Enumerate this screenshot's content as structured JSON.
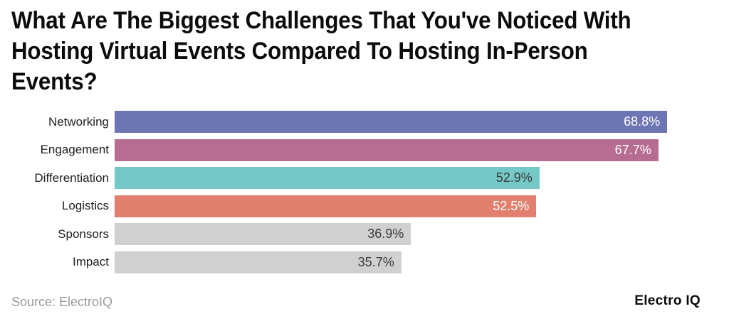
{
  "header": {
    "title": "What Are The Biggest Challenges That You've Noticed With Hosting Virtual Events Compared To Hosting In-Person Events?",
    "title_lines": [
      "What Are The Biggest Challenges That You've Noticed With",
      "Hosting Virtual Events Compared To Hosting In-Person",
      "Events?"
    ]
  },
  "chart_data": {
    "type": "bar",
    "orientation": "horizontal",
    "title": "What Are The Biggest Challenges That You've Noticed With Hosting Virtual Events Compared To Hosting In-Person Events?",
    "categories": [
      "Networking",
      "Engagement",
      "Differentiation",
      "Logistics",
      "Sponsors",
      "Impact"
    ],
    "values": [
      68.8,
      67.7,
      52.9,
      52.5,
      36.9,
      35.7
    ],
    "value_labels": [
      "68.8%",
      "67.7%",
      "52.9%",
      "52.5%",
      "36.9%",
      "35.7%"
    ],
    "xlabel": "",
    "ylabel": "",
    "xlim": [
      0,
      76.5
    ],
    "grid": false,
    "legend": false,
    "bar_colors": [
      "#6e75b3",
      "#b76d92",
      "#74c8c6",
      "#e2806f",
      "#d0d0d0",
      "#d0d0d0"
    ],
    "value_label_colors": [
      "#ffffff",
      "#ffffff",
      "#3a3a3a",
      "#ffffff",
      "#3a3a3a",
      "#3a3a3a"
    ]
  },
  "footer": {
    "source": "Source: ElectroIQ",
    "brand": "Electro IQ"
  }
}
